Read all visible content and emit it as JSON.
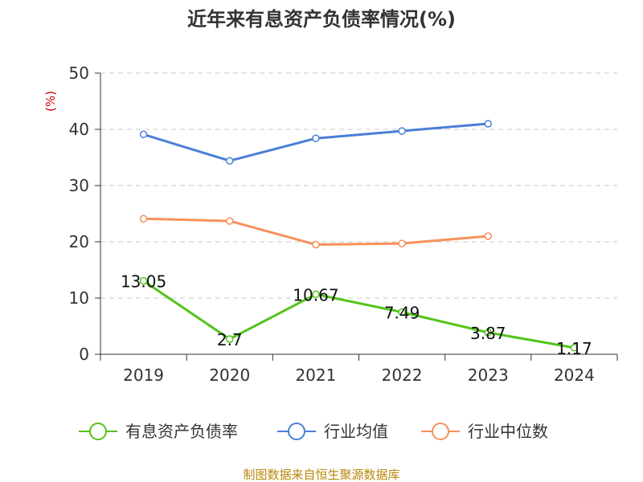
{
  "chart_data": {
    "type": "line",
    "title": "近年来有息资产负债率情况(%)",
    "ylabel": "(%)",
    "xlabel": "",
    "categories": [
      "2019",
      "2020",
      "2021",
      "2022",
      "2023",
      "2024"
    ],
    "ylim": [
      0,
      50
    ],
    "yticks": [
      "0",
      "10",
      "20",
      "30",
      "40",
      "50"
    ],
    "grid": true,
    "legend_position": "bottom",
    "series": [
      {
        "name": "有息资产负债率",
        "color": "#52c41a",
        "values": [
          13.05,
          2.7,
          10.67,
          7.49,
          3.87,
          1.17
        ],
        "labels": [
          "13.05",
          "2.7",
          "10.67",
          "7.49",
          "3.87",
          "1.17"
        ]
      },
      {
        "name": "行业均值",
        "color": "#4a7fd8",
        "values": [
          39.1,
          34.4,
          38.4,
          39.7,
          41.0,
          null
        ]
      },
      {
        "name": "行业中位数",
        "color": "#f7905a",
        "values": [
          24.1,
          23.7,
          19.5,
          19.7,
          21.0,
          null
        ]
      }
    ],
    "source": "制图数据来自恒生聚源数据库"
  }
}
